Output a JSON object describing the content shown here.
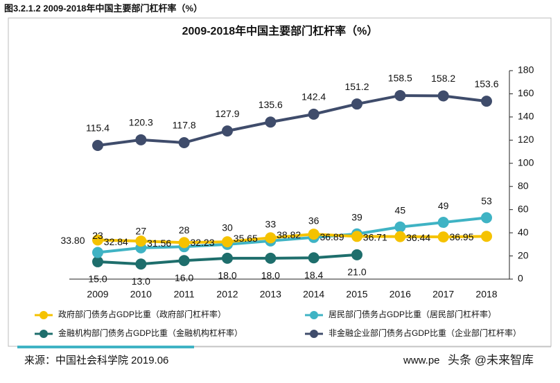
{
  "caption": "图3.2.1.2 2009-2018年中国主要部门杠杆率（%）",
  "chart_data": {
    "type": "line",
    "title": "2009-2018年中国主要部门杠杆率（%）",
    "categories": [
      "2009",
      "2010",
      "2011",
      "2012",
      "2013",
      "2014",
      "2015",
      "2016",
      "2017",
      "2018"
    ],
    "ylim": [
      0,
      180
    ],
    "yticks": [
      0,
      20,
      40,
      60,
      80,
      100,
      120,
      140,
      160,
      180
    ],
    "y_axis_side": "right",
    "series": [
      {
        "name": "政府部门债务占GDP比重（政府部门杠杆率）",
        "color": "#f5c200",
        "values": [
          33.8,
          32.84,
          31.56,
          32.23,
          35.65,
          38.82,
          36.89,
          36.71,
          36.44,
          36.95
        ],
        "value_labels": [
          "33.80",
          "32.84",
          "31.56",
          "32.23",
          "35.65",
          "38.82",
          "36.89",
          "36.71",
          "36.44",
          "36.95"
        ]
      },
      {
        "name": "居民部门债务占GDP比重（居民部门杠杆率）",
        "color": "#3fb3c4",
        "values": [
          23,
          27,
          28,
          30,
          33,
          36,
          39,
          45,
          49,
          53
        ]
      },
      {
        "name": "金融机构部门债务占GDP比重（金融机构杠杆率）",
        "color": "#1e6e6c",
        "values": [
          15,
          13,
          16,
          18,
          18,
          18.4,
          21,
          null,
          null,
          null
        ],
        "value_labels": [
          "15.0",
          "13.0",
          "16.0",
          "18.0",
          "18.0",
          "18.4",
          "21.0",
          null,
          null,
          null
        ]
      },
      {
        "name": "非金融企业部门债务占GDP比重（企业部门杠杆率）",
        "color": "#3f4c6b",
        "values": [
          115.4,
          120.3,
          117.8,
          127.9,
          135.6,
          142.4,
          151.2,
          158.5,
          158.2,
          153.6
        ]
      }
    ]
  },
  "source": "来源：中国社会科学院 2019.06",
  "site": "www.pe",
  "watermark": "头条 @未来智库"
}
